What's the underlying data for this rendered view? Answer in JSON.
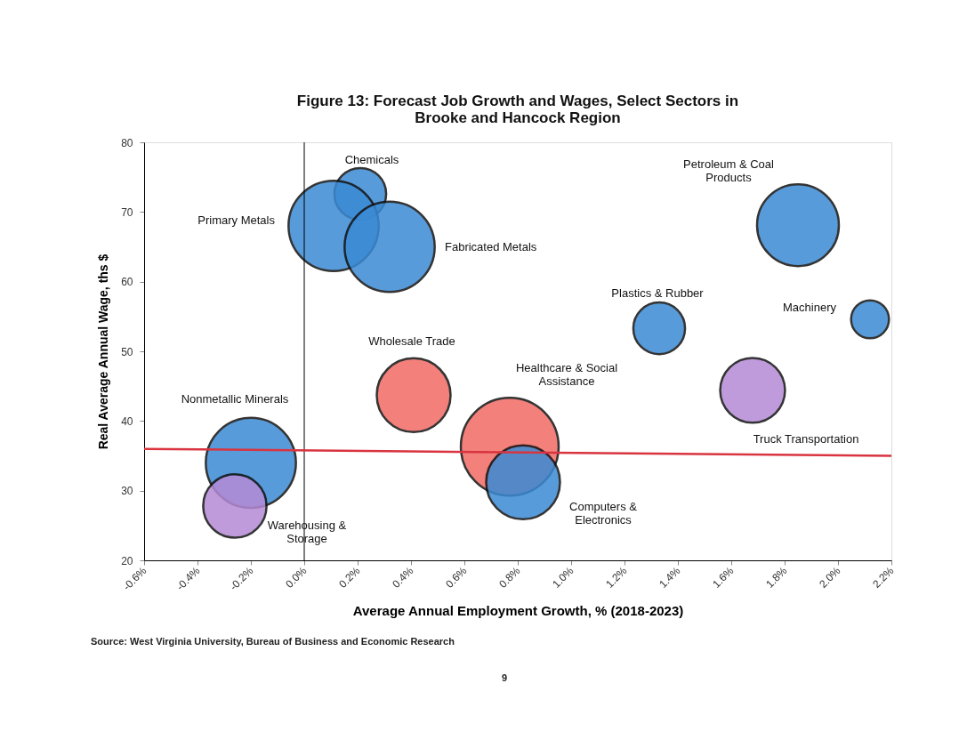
{
  "chart_data": {
    "type": "bubble",
    "title": "Figure 13: Forecast Job Growth and Wages, Select Sectors in Brooke and Hancock Region",
    "xlabel": "Average Annual Employment Growth, % (2018-2023)",
    "ylabel": "Real Average Annual Wage, ths $",
    "xlim": [
      -0.6,
      2.2
    ],
    "ylim": [
      20,
      80
    ],
    "xticks": [
      {
        "value": -0.6,
        "label": "-0.6%"
      },
      {
        "value": -0.4,
        "label": "-0.4%"
      },
      {
        "value": -0.2,
        "label": "-0.2%"
      },
      {
        "value": 0.0,
        "label": "0.0%"
      },
      {
        "value": 0.2,
        "label": "0.2%"
      },
      {
        "value": 0.4,
        "label": "0.4%"
      },
      {
        "value": 0.6,
        "label": "0.6%"
      },
      {
        "value": 0.8,
        "label": "0.8%"
      },
      {
        "value": 1.0,
        "label": "1.0%"
      },
      {
        "value": 1.2,
        "label": "1.2%"
      },
      {
        "value": 1.4,
        "label": "1.4%"
      },
      {
        "value": 1.6,
        "label": "1.6%"
      },
      {
        "value": 1.8,
        "label": "1.8%"
      },
      {
        "value": 2.0,
        "label": "2.0%"
      },
      {
        "value": 2.2,
        "label": "2.2%"
      }
    ],
    "yticks": [
      20,
      30,
      40,
      50,
      60,
      70,
      80
    ],
    "grid": false,
    "series": [
      {
        "color": "#3a8ad4",
        "x": [
          0.21,
          0.11,
          0.32,
          -0.2,
          0.82,
          1.85,
          1.33,
          2.12
        ],
        "values": [
          72.6,
          68.0,
          65.0,
          34.0,
          31.2,
          68.1,
          53.3,
          54.6
        ],
        "sizes": [
          0.28,
          0.85,
          0.85,
          0.85,
          0.57,
          0.7,
          0.28,
          0.15
        ]
      },
      {
        "color": "#f26b64",
        "x": [
          0.41,
          0.77
        ],
        "values": [
          43.7,
          36.3
        ],
        "sizes": [
          0.57,
          1.0
        ]
      },
      {
        "color": "#b58ad6",
        "x": [
          -0.26,
          1.68
        ],
        "values": [
          27.8,
          44.4
        ],
        "sizes": [
          0.42,
          0.44
        ]
      },
      {
        "type": "line",
        "color": "#d9343f",
        "x": [
          -0.6,
          2.2
        ],
        "values": [
          36.0,
          35.0
        ]
      }
    ],
    "ref_lines": [
      {
        "axis": "x",
        "value": 0,
        "color": "#000000"
      }
    ],
    "annotations": [
      "Chemicals",
      "Primary Metals",
      "Fabricated Metals",
      "Nonmetallic Minerals",
      "Computers &\nElectronics",
      "Petroleum & Coal\nProducts",
      "Plastics & Rubber",
      "Machinery",
      "Wholesale Trade",
      "Healthcare & Social\nAssistance",
      "Warehousing &\nStorage",
      "Truck Transportation",
      "Source: West Virginia University, Bureau of Business and Economic Research",
      "9"
    ]
  }
}
